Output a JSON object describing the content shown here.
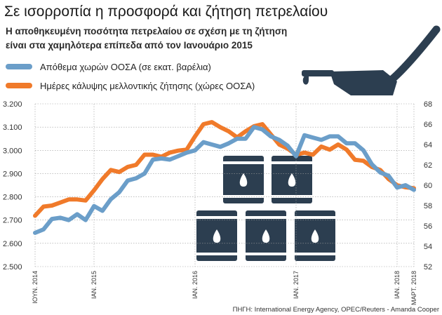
{
  "chart_data": {
    "type": "line",
    "title": "Σε ισορροπία η προσφορά και ζήτηση πετρελαίου",
    "subtitle": [
      "Η αποθηκευμένη ποσότητα πετρελαίου σε σχέση με τη ζήτηση",
      "είναι στα χαμηλότερα επίπεδα από τον Ιανουάριο 2015"
    ],
    "source": "ΠΗΓΗ: International Energy Agency, OPEC/Reuters - Amanda Cooper",
    "x_labels": [
      "ΙΟΥΝ. 2014",
      "ΙΑΝ. 2015",
      "ΙΑΝ. 2016",
      "ΙΑΝ. 2017",
      "ΙΑΝ. 2018",
      "ΜΑΡΤ. 2018"
    ],
    "x_label_months": [
      0,
      7,
      19,
      31,
      43,
      45
    ],
    "y_left": {
      "ticks": [
        "3.200",
        "3.100",
        "3.000",
        "2.900",
        "2.800",
        "2.700",
        "2.600",
        "2.500"
      ],
      "min": 2500,
      "max": 3200
    },
    "y_right": {
      "ticks": [
        "68",
        "66",
        "64",
        "62",
        "60",
        "58",
        "56",
        "54",
        "52"
      ],
      "min": 52,
      "max": 68
    },
    "grid": true,
    "legend_position": "top-left",
    "series": [
      {
        "name": "Απόθεμα χωρών ΟΟΣΑ (σε εκατ. βαρέλια)",
        "axis": "left",
        "color": "#6b9ec9",
        "x": [
          0,
          1,
          2,
          3,
          4,
          5,
          6,
          7,
          8,
          9,
          10,
          11,
          12,
          13,
          14,
          15,
          16,
          17,
          18,
          19,
          20,
          21,
          22,
          23,
          24,
          25,
          26,
          27,
          28,
          29,
          30,
          31,
          32,
          33,
          34,
          35,
          36,
          37,
          38,
          39,
          40,
          41,
          42,
          43,
          44,
          45
        ],
        "values": [
          2645,
          2660,
          2705,
          2710,
          2700,
          2725,
          2700,
          2760,
          2740,
          2790,
          2820,
          2870,
          2880,
          2900,
          2960,
          2965,
          2960,
          2975,
          2990,
          3000,
          3035,
          3025,
          3015,
          3030,
          3050,
          3050,
          3100,
          3090,
          3060,
          3045,
          3020,
          2975,
          3065,
          3055,
          3045,
          3060,
          3060,
          3030,
          3030,
          3000,
          2940,
          2905,
          2890,
          2840,
          2850,
          2830
        ]
      },
      {
        "name": "Ημέρες κάλυψης μελλοντικής ζήτησης (χώρες ΟΟΣΑ)",
        "axis": "right",
        "color": "#f07a2a",
        "x": [
          0,
          1,
          2,
          3,
          4,
          5,
          6,
          7,
          8,
          9,
          10,
          11,
          12,
          13,
          14,
          15,
          16,
          17,
          18,
          19,
          20,
          21,
          22,
          23,
          24,
          25,
          26,
          27,
          28,
          29,
          30,
          31,
          32,
          33,
          34,
          35,
          36,
          37,
          38,
          39,
          40,
          41,
          42,
          43,
          44,
          45
        ],
        "values": [
          57.0,
          57.9,
          58.0,
          58.3,
          58.6,
          58.6,
          58.5,
          59.5,
          60.6,
          61.5,
          61.3,
          61.8,
          62.0,
          63.0,
          63.0,
          62.8,
          63.2,
          63.4,
          63.5,
          64.8,
          66.0,
          66.2,
          65.7,
          65.3,
          64.7,
          65.3,
          65.8,
          66.0,
          65.0,
          64.0,
          63.6,
          63.0,
          63.2,
          63.0,
          63.8,
          63.5,
          64.0,
          63.5,
          62.5,
          62.4,
          61.8,
          61.5,
          60.6,
          60.0,
          59.8,
          59.7
        ]
      }
    ]
  }
}
